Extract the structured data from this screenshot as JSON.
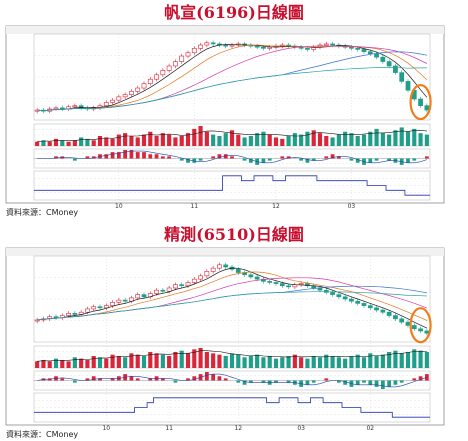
{
  "chart_data": [
    {
      "type": "candlestick",
      "title": "帆宣(6196)日線圖",
      "x_tick_labels": [
        "10",
        "11",
        "12",
        "03"
      ],
      "price": [
        78,
        77,
        79,
        80,
        79,
        81,
        82,
        80,
        79,
        80,
        82,
        85,
        87,
        90,
        92,
        95,
        98,
        102,
        106,
        110,
        114,
        118,
        122,
        127,
        130,
        134,
        137,
        139,
        138,
        137,
        136,
        137,
        138,
        137,
        136,
        135,
        134,
        135,
        136,
        137,
        136,
        135,
        134,
        133,
        135,
        137,
        138,
        137,
        136,
        135,
        134,
        133,
        131,
        129,
        126,
        122,
        118,
        112,
        104,
        96,
        88,
        82,
        78
      ],
      "volume": [
        3,
        4,
        3,
        5,
        4,
        3,
        4,
        6,
        5,
        4,
        7,
        6,
        5,
        8,
        9,
        7,
        6,
        8,
        10,
        7,
        9,
        8,
        6,
        7,
        9,
        12,
        14,
        10,
        8,
        7,
        9,
        11,
        8,
        6,
        7,
        9,
        10,
        8,
        6,
        5,
        7,
        9,
        8,
        10,
        11,
        9,
        7,
        6,
        8,
        10,
        9,
        7,
        8,
        10,
        12,
        9,
        8,
        11,
        13,
        10,
        12,
        9,
        8
      ],
      "indicator": [
        0,
        0,
        0,
        1,
        1,
        0,
        -1,
        0,
        1,
        1,
        2,
        2,
        3,
        3,
        4,
        4,
        3,
        3,
        2,
        2,
        1,
        1,
        0,
        -1,
        -2,
        -2,
        -1,
        0,
        1,
        2,
        2,
        1,
        0,
        -1,
        -2,
        -3,
        -2,
        -1,
        0,
        1,
        1,
        0,
        -1,
        -2,
        -1,
        0,
        1,
        2,
        1,
        0,
        -1,
        -2,
        -3,
        -2,
        -1,
        0,
        -1,
        -2,
        -3,
        -2,
        -1,
        0,
        1
      ],
      "chip_line": [
        6,
        6,
        6,
        6,
        6,
        6,
        6,
        6,
        6,
        6,
        6,
        6,
        6,
        6,
        6,
        6,
        6,
        6,
        6,
        6,
        6,
        6,
        6,
        6,
        6,
        6,
        6,
        6,
        6,
        6,
        9,
        9,
        9,
        8,
        8,
        9,
        9,
        9,
        8,
        8,
        9,
        9,
        9,
        9,
        9,
        8,
        8,
        8,
        8,
        8,
        8,
        8,
        8,
        7,
        7,
        7,
        6,
        6,
        6,
        5,
        5,
        5,
        5
      ]
    },
    {
      "type": "candlestick",
      "title": "精測(6510)日線圖",
      "x_tick_labels": [
        "10",
        "11",
        "12",
        "03",
        "02"
      ],
      "price": [
        100,
        101,
        103,
        102,
        104,
        106,
        105,
        107,
        110,
        112,
        111,
        113,
        116,
        118,
        117,
        120,
        123,
        121,
        124,
        127,
        126,
        129,
        132,
        131,
        134,
        137,
        140,
        144,
        147,
        150,
        148,
        146,
        143,
        141,
        139,
        137,
        135,
        134,
        133,
        131,
        130,
        132,
        133,
        131,
        129,
        127,
        125,
        123,
        121,
        119,
        117,
        115,
        113,
        111,
        109,
        107,
        104,
        101,
        98,
        95,
        92,
        90,
        88
      ],
      "volume": [
        5,
        6,
        5,
        7,
        6,
        5,
        8,
        7,
        6,
        9,
        8,
        7,
        10,
        9,
        8,
        11,
        10,
        9,
        12,
        11,
        10,
        9,
        12,
        13,
        11,
        14,
        15,
        12,
        11,
        10,
        9,
        11,
        10,
        8,
        9,
        10,
        8,
        9,
        7,
        8,
        9,
        10,
        8,
        7,
        9,
        8,
        10,
        9,
        8,
        7,
        9,
        10,
        8,
        11,
        9,
        10,
        12,
        13,
        11,
        12,
        14,
        13,
        12
      ],
      "indicator": [
        0,
        1,
        1,
        2,
        1,
        0,
        -1,
        0,
        1,
        2,
        1,
        0,
        1,
        2,
        3,
        2,
        1,
        0,
        1,
        2,
        1,
        0,
        -1,
        0,
        1,
        2,
        3,
        4,
        3,
        2,
        1,
        0,
        -1,
        -2,
        -1,
        0,
        -1,
        -2,
        -1,
        0,
        -1,
        -2,
        -3,
        -2,
        -1,
        0,
        1,
        0,
        -1,
        -2,
        -3,
        -2,
        -1,
        -2,
        -3,
        -4,
        -3,
        -2,
        -1,
        0,
        1,
        2,
        3
      ],
      "chip_line": [
        6,
        6,
        6,
        6,
        6,
        6,
        6,
        6,
        6,
        6,
        6,
        6,
        6,
        6,
        6,
        6,
        7,
        7,
        8,
        9,
        9,
        9,
        9,
        9,
        9,
        9,
        9,
        9,
        9,
        9,
        9,
        9,
        9,
        9,
        9,
        9,
        9,
        8,
        8,
        9,
        9,
        9,
        8,
        8,
        9,
        9,
        8,
        8,
        8,
        7,
        7,
        7,
        6,
        6,
        6,
        6,
        6,
        5,
        5,
        5,
        5,
        5,
        5
      ]
    }
  ],
  "source_note": "資料來源：CMoney",
  "colors": {
    "title": "#c8102e",
    "up": "#d9263a",
    "down": "#1f9e89",
    "ma": [
      "#1a1a1a",
      "#e07a1f",
      "#d63ba8",
      "#3b6fd6",
      "#2aa3a0"
    ],
    "highlight_circle": "#f07d1a"
  }
}
